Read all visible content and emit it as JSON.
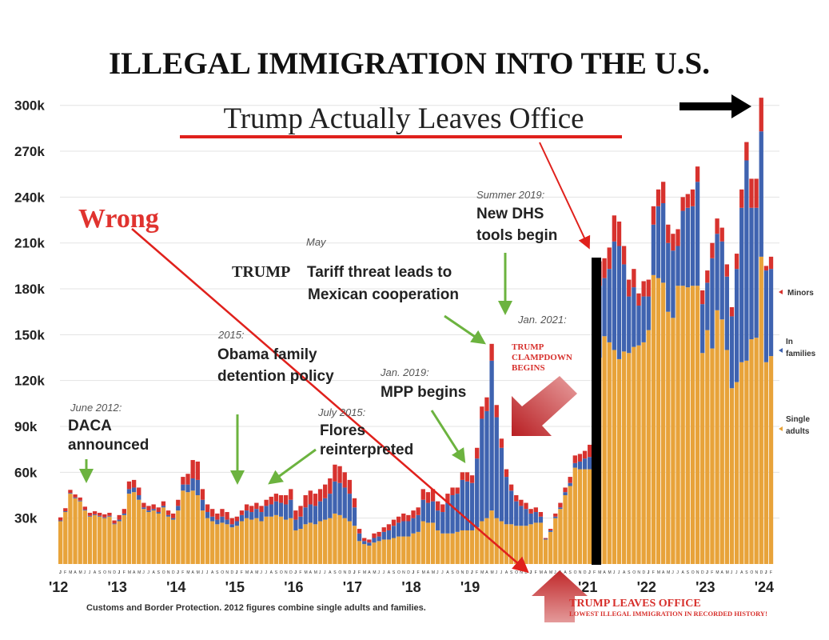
{
  "title": "ILLEGAL IMMIGRATION INTO THE U.S.",
  "overlay": {
    "headline": "Trump Actually Leaves Office",
    "wrong": "Wrong",
    "leaves_office": "TRUMP LEAVES OFFICE",
    "lowest": "LOWEST ILLEGAL IMMIGRATION IN RECORDED HISTORY!",
    "clampdown": [
      "TRUMP",
      "CLAMPDOWN",
      "BEGINS"
    ],
    "trump_word": "TRUMP",
    "colors": {
      "red": "#d7302c",
      "black": "#000000",
      "green": "#6cb33f"
    }
  },
  "annotations": {
    "daca": {
      "date": "June 2012:",
      "lines": [
        "DACA",
        "announced"
      ]
    },
    "obama": {
      "date": "2015:",
      "lines": [
        "Obama family",
        "detention policy"
      ]
    },
    "flores": {
      "date": "July 2015:",
      "lines": [
        "Flores",
        "reinterpreted"
      ]
    },
    "tariff": {
      "date": "May",
      "lines": [
        "Tariff threat leads to",
        "Mexican cooperation"
      ]
    },
    "dhs": {
      "date": "Summer 2019:",
      "lines": [
        "New DHS",
        "tools begin"
      ]
    },
    "mpp": {
      "date": "Jan. 2019:",
      "lines": [
        "MPP begins"
      ]
    },
    "jan2021": {
      "date": "Jan. 2021:"
    }
  },
  "source": "Customs and Border Protection. 2012 figures combine single adults and families.",
  "chart_data": {
    "type": "bar",
    "stacked": true,
    "title": "ILLEGAL IMMIGRATION INTO THE U.S.",
    "xlabel": "",
    "ylabel": "",
    "ylim": [
      0,
      310000
    ],
    "grid": true,
    "legend_position": "right",
    "y_ticks": [
      "30k",
      "60k",
      "90k",
      "120k",
      "150k",
      "180k",
      "210k",
      "240k",
      "270k",
      "300k"
    ],
    "y_tick_values": [
      30,
      60,
      90,
      120,
      150,
      180,
      210,
      240,
      270,
      300
    ],
    "x_year_labels": [
      "'12",
      "'13",
      "'14",
      "'15",
      "'16",
      "'17",
      "'18",
      "'19",
      "'21",
      "'22",
      "'23",
      "'24"
    ],
    "x_year_index": [
      0,
      12,
      24,
      36,
      48,
      60,
      72,
      84,
      108,
      120,
      132,
      144
    ],
    "month_letters": [
      "J",
      "F",
      "M",
      "A",
      "M",
      "J",
      "J",
      "A",
      "S",
      "O",
      "N",
      "D"
    ],
    "units": "thousands per month",
    "series": [
      {
        "name": "Single adults",
        "color": "#e8a33a",
        "values": [
          28,
          34,
          46,
          43,
          41,
          35,
          31,
          32,
          31,
          30,
          31,
          26,
          28,
          32,
          46,
          47,
          42,
          36,
          34,
          35,
          33,
          37,
          31,
          29,
          35,
          48,
          47,
          48,
          45,
          35,
          30,
          28,
          26,
          27,
          26,
          24,
          25,
          28,
          30,
          29,
          30,
          28,
          31,
          31,
          32,
          31,
          29,
          30,
          22,
          23,
          26,
          27,
          26,
          28,
          29,
          30,
          33,
          32,
          30,
          28,
          25,
          15,
          13,
          12,
          14,
          15,
          16,
          16,
          17,
          18,
          18,
          18,
          20,
          21,
          28,
          27,
          27,
          22,
          20,
          20,
          20,
          21,
          22,
          22,
          22,
          24,
          28,
          30,
          35,
          30,
          28,
          26,
          26,
          25,
          25,
          25,
          26,
          27,
          27,
          16,
          21,
          30,
          36,
          45,
          51,
          63,
          62,
          62,
          62,
          75,
          135,
          149,
          145,
          140,
          134,
          139,
          138,
          142,
          143,
          145,
          153,
          189,
          187,
          184,
          165,
          161,
          182,
          182,
          181,
          182,
          182,
          138,
          153,
          141,
          166,
          160,
          140,
          115,
          119,
          132,
          133,
          147,
          148,
          201,
          132,
          136
        ]
      },
      {
        "name": "In families",
        "color": "#3f63b0",
        "values": [
          0.5,
          0.5,
          0.5,
          0.5,
          0.5,
          0.5,
          0.5,
          0.5,
          0.5,
          0.5,
          0.5,
          0.5,
          1,
          1,
          3,
          3,
          3,
          1,
          1,
          1,
          1,
          1,
          1,
          1,
          3,
          4,
          5,
          8,
          10,
          7,
          4,
          3,
          3,
          4,
          3,
          2,
          3,
          4,
          5,
          5,
          6,
          6,
          7,
          8,
          9,
          9,
          10,
          12,
          7,
          8,
          11,
          12,
          12,
          13,
          14,
          16,
          21,
          21,
          20,
          18,
          12,
          5,
          2,
          2,
          3,
          3,
          5,
          6,
          8,
          9,
          10,
          10,
          10,
          11,
          14,
          13,
          14,
          13,
          14,
          20,
          25,
          25,
          33,
          32,
          31,
          45,
          67,
          70,
          98,
          66,
          48,
          31,
          22,
          16,
          13,
          11,
          7,
          7,
          4,
          0.5,
          1,
          1,
          1,
          2,
          2,
          3,
          5,
          7,
          8,
          16,
          47,
          38,
          48,
          71,
          74,
          57,
          37,
          39,
          26,
          30,
          22,
          33,
          47,
          52,
          45,
          44,
          26,
          49,
          52,
          52,
          68,
          32,
          31,
          59,
          50,
          51,
          48,
          47,
          74,
          101,
          131,
          86,
          85,
          82,
          60,
          57
        ]
      },
      {
        "name": "Minors",
        "color": "#d7322e",
        "values": [
          2,
          2,
          2,
          2,
          2,
          2,
          2,
          2,
          2,
          2,
          2,
          2,
          3,
          3,
          5,
          5,
          5,
          3,
          3,
          3,
          3,
          3,
          3,
          3,
          4,
          5,
          7,
          12,
          12,
          7,
          5,
          5,
          4,
          5,
          5,
          4,
          3,
          3,
          4,
          4,
          4,
          4,
          4,
          5,
          5,
          5,
          6,
          7,
          6,
          7,
          8,
          9,
          8,
          8,
          9,
          10,
          11,
          11,
          10,
          9,
          6,
          3,
          2,
          2,
          3,
          3,
          3,
          4,
          4,
          4,
          5,
          4,
          5,
          5,
          7,
          7,
          8,
          6,
          5,
          6,
          5,
          4,
          5,
          6,
          5,
          7,
          8,
          9,
          11,
          8,
          6,
          5,
          4,
          4,
          4,
          4,
          3,
          3,
          3,
          0.5,
          1,
          2,
          3,
          3,
          4,
          5,
          5,
          5,
          8,
          10,
          16,
          13,
          14,
          17,
          16,
          12,
          11,
          12,
          8,
          10,
          11,
          12,
          11,
          14,
          12,
          11,
          11,
          9,
          9,
          11,
          10,
          9,
          8,
          10,
          10,
          9,
          8,
          6,
          10,
          12,
          12,
          19,
          19,
          22,
          3,
          8
        ]
      }
    ],
    "legend": [
      {
        "label": "Minors",
        "color": "#d7322e"
      },
      {
        "label": "In families",
        "color": "#3f63b0"
      },
      {
        "label": "Single adults",
        "color": "#e8a33a"
      }
    ]
  }
}
